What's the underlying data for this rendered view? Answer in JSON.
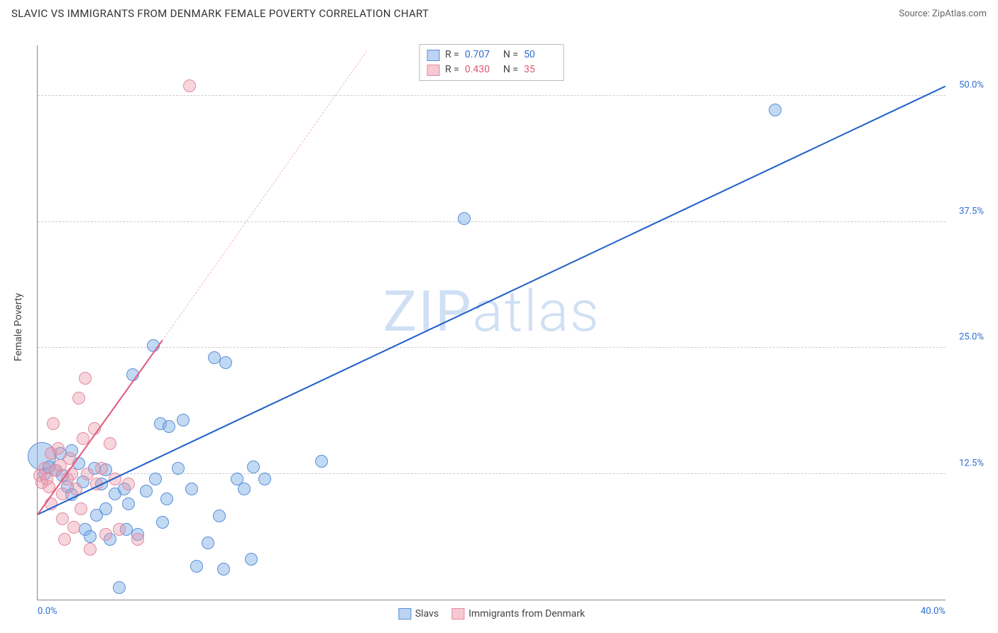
{
  "header": {
    "title": "SLAVIC VS IMMIGRANTS FROM DENMARK FEMALE POVERTY CORRELATION CHART",
    "source": "Source: ZipAtlas.com"
  },
  "chart": {
    "type": "scatter",
    "ylabel": "Female Poverty",
    "xlim": [
      0,
      40
    ],
    "ylim": [
      0,
      55
    ],
    "grid_color": "#cccccc",
    "axis_color": "#888888",
    "background_color": "#ffffff",
    "yticks": [
      {
        "v": 12.5,
        "label": "12.5%",
        "color": "#2f6dd0"
      },
      {
        "v": 25.0,
        "label": "25.0%",
        "color": "#2f6dd0"
      },
      {
        "v": 37.5,
        "label": "37.5%",
        "color": "#2f6dd0"
      },
      {
        "v": 50.0,
        "label": "50.0%",
        "color": "#2f6dd0"
      }
    ],
    "xticks": [
      {
        "v": 0,
        "label": "0.0%",
        "color": "#2f6dd0"
      },
      {
        "v": 40,
        "label": "40.0%",
        "color": "#2f6dd0"
      }
    ],
    "watermark": {
      "text_a": "ZIP",
      "text_b": "atlas",
      "color": "#cfe0f4"
    },
    "stats_legend": {
      "border_color": "#bbbbbb",
      "rows": [
        {
          "swatch_fill": "#bcd4f2",
          "swatch_border": "#5b8fd6",
          "r_label": "R =",
          "r_val": "0.707",
          "r_color": "#2f6dd0",
          "n_label": "N =",
          "n_val": "50",
          "n_color": "#2f6dd0"
        },
        {
          "swatch_fill": "#f7c9d3",
          "swatch_border": "#e28aa0",
          "r_label": "R =",
          "r_val": "0.430",
          "r_color": "#e05a7a",
          "n_label": "N =",
          "n_val": "35",
          "n_color": "#e05a7a"
        }
      ]
    },
    "bottom_legend": {
      "items": [
        {
          "swatch_fill": "#bcd4f2",
          "swatch_border": "#5b8fd6",
          "label": "Slavs"
        },
        {
          "swatch_fill": "#f7c9d3",
          "swatch_border": "#e28aa0",
          "label": "Immigrants from Denmark"
        }
      ]
    },
    "series": [
      {
        "name": "slavs",
        "color_fill": "rgba(120,170,230,0.45)",
        "color_stroke": "#5b8fd6",
        "marker_radius": 9,
        "trend": {
          "x1": 0,
          "y1": 8.5,
          "x2": 40,
          "y2": 51,
          "color": "#1f5fc9",
          "width": 2,
          "dashed": false
        },
        "points": [
          {
            "x": 0.2,
            "y": 14.2,
            "r": 20
          },
          {
            "x": 0.3,
            "y": 12.5
          },
          {
            "x": 0.5,
            "y": 13.2
          },
          {
            "x": 0.8,
            "y": 12.8
          },
          {
            "x": 1.0,
            "y": 14.5
          },
          {
            "x": 1.1,
            "y": 12.3
          },
          {
            "x": 1.3,
            "y": 11.2
          },
          {
            "x": 1.5,
            "y": 10.4
          },
          {
            "x": 1.5,
            "y": 14.8
          },
          {
            "x": 1.8,
            "y": 13.5
          },
          {
            "x": 2.0,
            "y": 11.7
          },
          {
            "x": 2.1,
            "y": 7.0
          },
          {
            "x": 2.3,
            "y": 6.3
          },
          {
            "x": 2.5,
            "y": 13.0
          },
          {
            "x": 2.6,
            "y": 8.4
          },
          {
            "x": 2.8,
            "y": 11.5
          },
          {
            "x": 3.0,
            "y": 9.0
          },
          {
            "x": 3.0,
            "y": 12.9
          },
          {
            "x": 3.2,
            "y": 6.0
          },
          {
            "x": 3.4,
            "y": 10.5
          },
          {
            "x": 3.6,
            "y": 1.2
          },
          {
            "x": 3.8,
            "y": 11.0
          },
          {
            "x": 3.9,
            "y": 7.0
          },
          {
            "x": 4.0,
            "y": 9.5
          },
          {
            "x": 4.2,
            "y": 22.3
          },
          {
            "x": 4.4,
            "y": 6.5
          },
          {
            "x": 4.8,
            "y": 10.8
          },
          {
            "x": 5.1,
            "y": 25.2
          },
          {
            "x": 5.2,
            "y": 12.0
          },
          {
            "x": 5.4,
            "y": 17.5
          },
          {
            "x": 5.5,
            "y": 7.7
          },
          {
            "x": 5.7,
            "y": 10.0
          },
          {
            "x": 5.8,
            "y": 17.2
          },
          {
            "x": 6.2,
            "y": 13.0
          },
          {
            "x": 6.4,
            "y": 17.8
          },
          {
            "x": 6.8,
            "y": 11.0
          },
          {
            "x": 7.0,
            "y": 3.3
          },
          {
            "x": 7.5,
            "y": 5.6
          },
          {
            "x": 7.8,
            "y": 24.0
          },
          {
            "x": 8.0,
            "y": 8.3
          },
          {
            "x": 8.2,
            "y": 3.0
          },
          {
            "x": 8.3,
            "y": 23.5
          },
          {
            "x": 8.8,
            "y": 12.0
          },
          {
            "x": 9.1,
            "y": 11.0
          },
          {
            "x": 9.4,
            "y": 4.0
          },
          {
            "x": 9.5,
            "y": 13.2
          },
          {
            "x": 10.0,
            "y": 12.0
          },
          {
            "x": 12.5,
            "y": 13.7
          },
          {
            "x": 18.8,
            "y": 37.8
          },
          {
            "x": 32.5,
            "y": 48.6
          }
        ]
      },
      {
        "name": "denmark",
        "color_fill": "rgba(235,150,170,0.40)",
        "color_stroke": "#e28aa0",
        "marker_radius": 9,
        "trend": {
          "x1": 0,
          "y1": 8.5,
          "x2": 5.5,
          "y2": 25.8,
          "color": "#e05a7a",
          "width": 2,
          "dashed": false
        },
        "trend_ext": {
          "x1": 5.5,
          "y1": 25.8,
          "x2": 14.5,
          "y2": 54.5,
          "color": "#f3b9c7",
          "width": 1.5,
          "dashed": true
        },
        "points": [
          {
            "x": 0.1,
            "y": 12.3
          },
          {
            "x": 0.2,
            "y": 11.6
          },
          {
            "x": 0.3,
            "y": 13.0
          },
          {
            "x": 0.4,
            "y": 12.0
          },
          {
            "x": 0.5,
            "y": 11.2
          },
          {
            "x": 0.6,
            "y": 14.5
          },
          {
            "x": 0.6,
            "y": 9.5
          },
          {
            "x": 0.7,
            "y": 17.5
          },
          {
            "x": 0.8,
            "y": 12.8
          },
          {
            "x": 0.9,
            "y": 15.0
          },
          {
            "x": 1.0,
            "y": 13.3
          },
          {
            "x": 1.1,
            "y": 10.5
          },
          {
            "x": 1.1,
            "y": 8.0
          },
          {
            "x": 1.2,
            "y": 6.0
          },
          {
            "x": 1.3,
            "y": 12.0
          },
          {
            "x": 1.4,
            "y": 14.0
          },
          {
            "x": 1.5,
            "y": 12.5
          },
          {
            "x": 1.6,
            "y": 7.2
          },
          {
            "x": 1.7,
            "y": 11.0
          },
          {
            "x": 1.8,
            "y": 20.0
          },
          {
            "x": 1.9,
            "y": 9.0
          },
          {
            "x": 2.0,
            "y": 16.0
          },
          {
            "x": 2.1,
            "y": 22.0
          },
          {
            "x": 2.2,
            "y": 12.5
          },
          {
            "x": 2.3,
            "y": 5.0
          },
          {
            "x": 2.5,
            "y": 17.0
          },
          {
            "x": 2.6,
            "y": 11.5
          },
          {
            "x": 2.8,
            "y": 13.0
          },
          {
            "x": 3.0,
            "y": 6.5
          },
          {
            "x": 3.2,
            "y": 15.5
          },
          {
            "x": 3.4,
            "y": 12.0
          },
          {
            "x": 3.6,
            "y": 7.0
          },
          {
            "x": 4.0,
            "y": 11.5
          },
          {
            "x": 4.4,
            "y": 6.0
          },
          {
            "x": 6.7,
            "y": 51.0
          }
        ]
      }
    ]
  }
}
